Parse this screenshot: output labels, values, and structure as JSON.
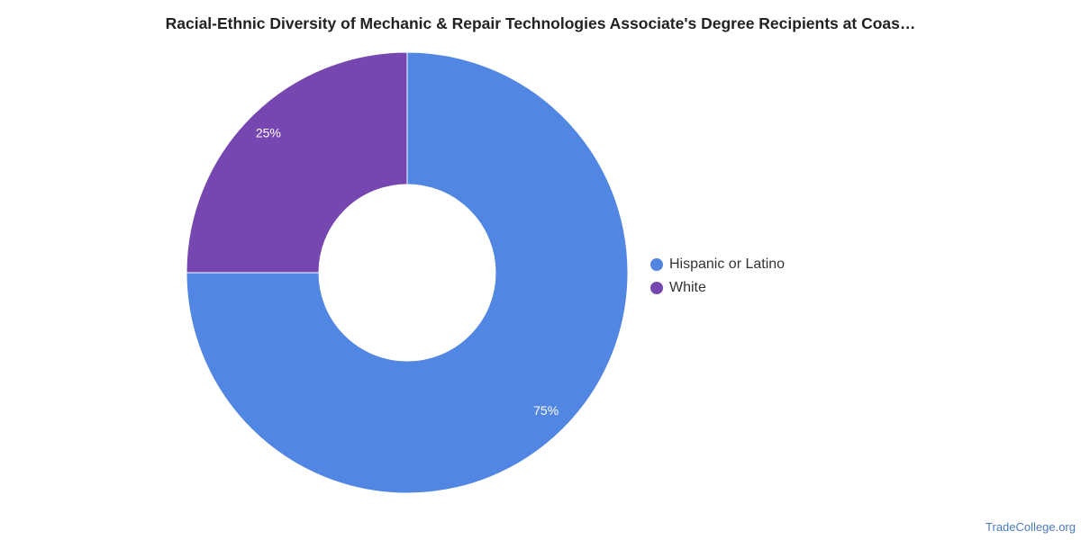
{
  "chart_data": {
    "type": "pie",
    "donut": true,
    "title": "Racial-Ethnic Diversity of Mechanic & Repair Technologies Associate's Degree Recipients at Coas…",
    "slices": [
      {
        "label": "Hispanic or Latino",
        "value": 75,
        "value_label": "75%",
        "color": "#5286e3"
      },
      {
        "label": "White",
        "value": 25,
        "value_label": "25%",
        "color": "#7647b0"
      }
    ],
    "legend_position": "right"
  },
  "credit": "TradeCollege.org"
}
